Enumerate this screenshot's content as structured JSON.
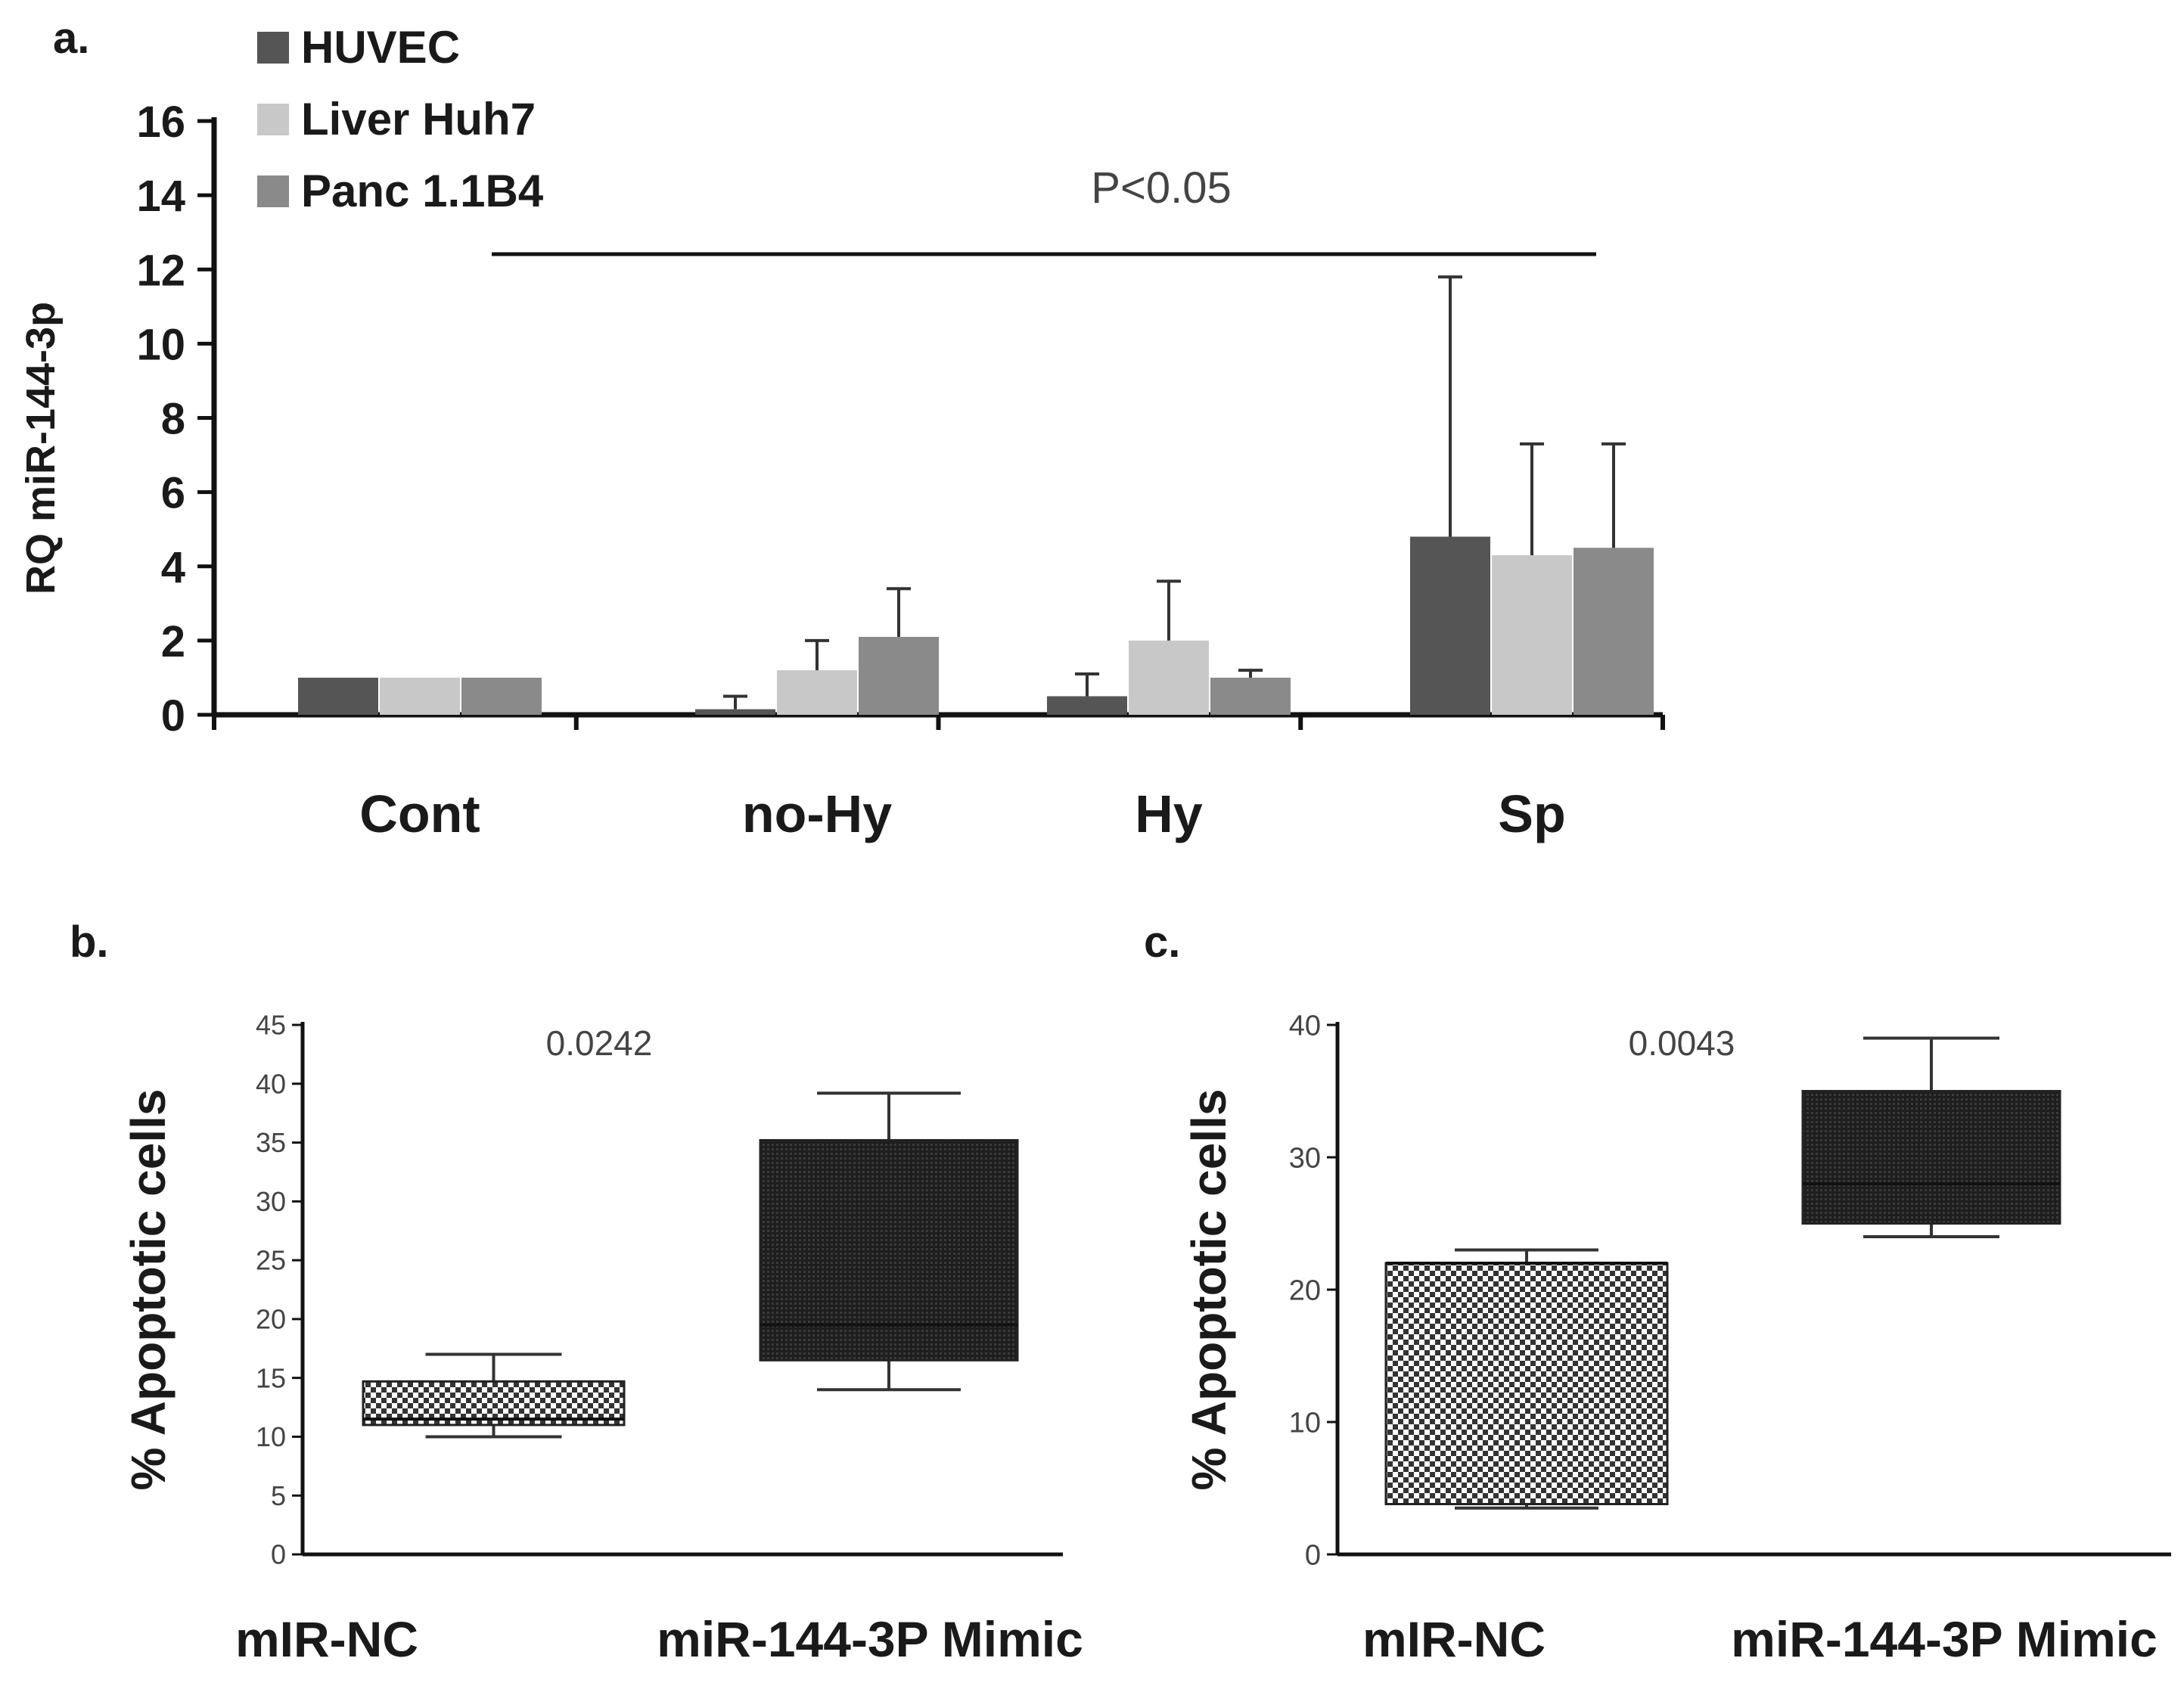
{
  "colors": {
    "huvec": "#555555",
    "liver": "#c8c8c8",
    "panc": "#8a8a8a",
    "axis": "#111111",
    "checker_light": "#ffffff",
    "checker_dark": "#333333",
    "dark_box": "#1e1e1e"
  },
  "chart_data": [
    {
      "panel": "a.",
      "type": "bar",
      "ylabel": "RQ miR-144-3p",
      "ylim": [
        0,
        16
      ],
      "yticks": [
        "0",
        "2",
        "4",
        "6",
        "8",
        "10",
        "12",
        "14",
        "16"
      ],
      "categories": [
        "Cont",
        "no-Hy",
        "Hy",
        "Sp"
      ],
      "series": [
        {
          "name": "HUVEC",
          "values": [
            1.0,
            0.15,
            0.5,
            4.8
          ],
          "errors": [
            0.0,
            0.35,
            0.6,
            7.0
          ]
        },
        {
          "name": "Liver Huh7",
          "values": [
            1.0,
            1.2,
            2.0,
            4.3
          ],
          "errors": [
            0.0,
            0.8,
            1.6,
            3.0
          ]
        },
        {
          "name": "Panc 1.1B4",
          "values": [
            1.0,
            2.1,
            1.0,
            4.5
          ],
          "errors": [
            0.0,
            1.3,
            0.2,
            2.8
          ]
        }
      ],
      "annotation": "P<0.05",
      "legend_position": "top-left"
    },
    {
      "panel": "b.",
      "type": "box",
      "ylabel": "% Apoptotic cells",
      "ylim": [
        0,
        45
      ],
      "yticks": [
        "0",
        "5",
        "10",
        "15",
        "20",
        "25",
        "30",
        "35",
        "40",
        "45"
      ],
      "categories": [
        "mIR-NC",
        "miR-144-3P Mimic"
      ],
      "boxes": [
        {
          "name": "mIR-NC",
          "min": 10,
          "q1": 11,
          "median": 11.5,
          "q3": 14.7,
          "max": 17
        },
        {
          "name": "miR-144-3P Mimic",
          "min": 14,
          "q1": 16.5,
          "median": 19.5,
          "q3": 35.2,
          "max": 39.2
        }
      ],
      "annotation": "0.0242"
    },
    {
      "panel": "c.",
      "type": "box",
      "ylabel": "% Apoptotic cells",
      "ylim": [
        0,
        40
      ],
      "yticks": [
        "0",
        "10",
        "20",
        "30",
        "40"
      ],
      "categories": [
        "mIR-NC",
        "miR-144-3P Mimic"
      ],
      "boxes": [
        {
          "name": "mIR-NC",
          "min": 3.5,
          "q1": 3.8,
          "median": 22,
          "q3": 22,
          "max": 23
        },
        {
          "name": "miR-144-3P Mimic",
          "min": 24,
          "q1": 25,
          "median": 28,
          "q3": 35,
          "max": 39
        }
      ],
      "annotation": "0.0043"
    }
  ]
}
